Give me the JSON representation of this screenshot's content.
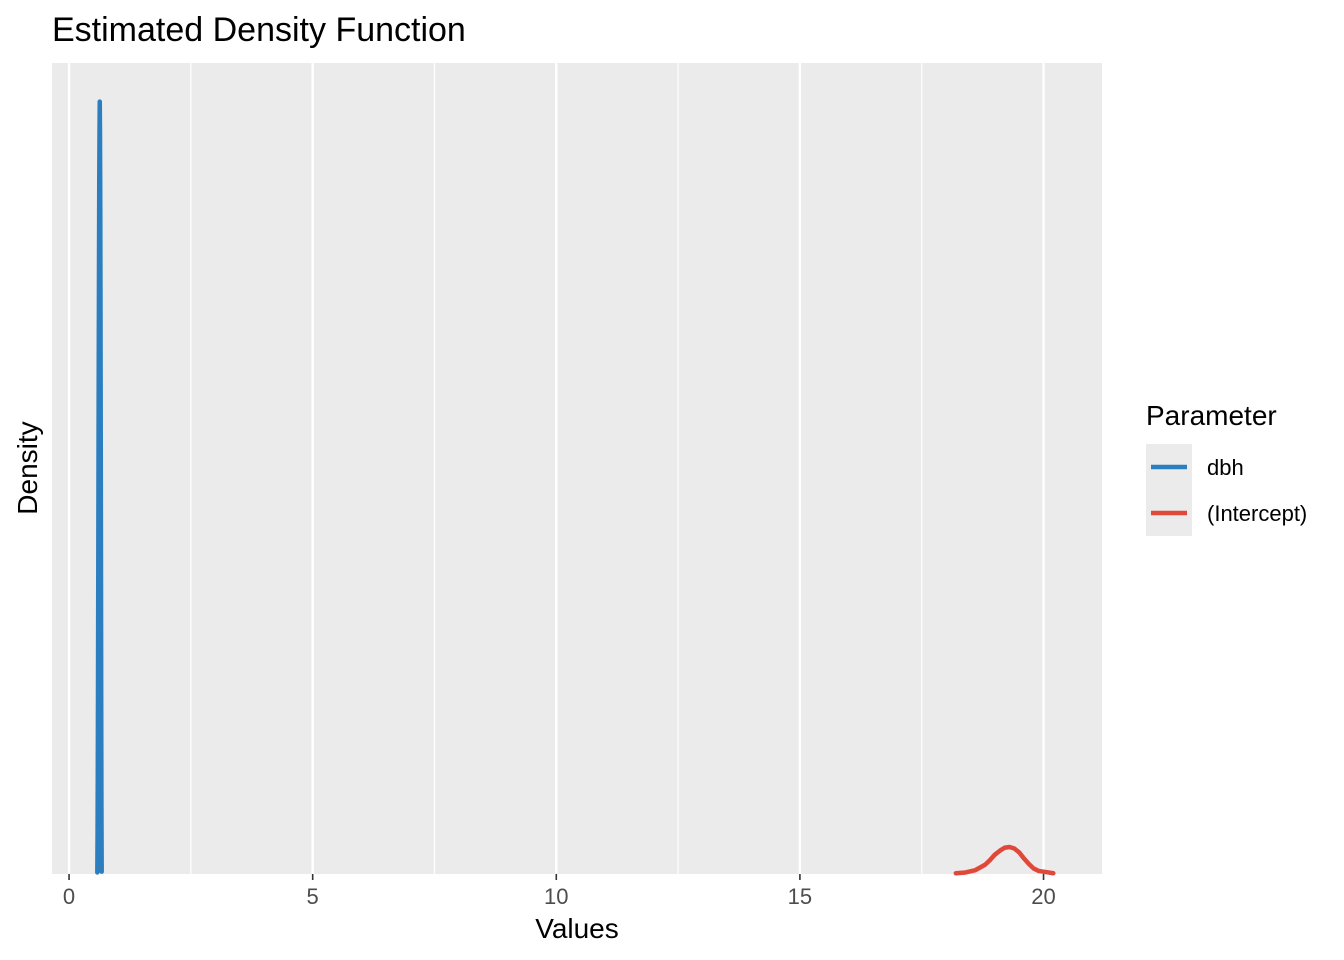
{
  "chart_data": {
    "type": "line",
    "title": "Estimated Density Function",
    "xlabel": "Values",
    "ylabel": "Density",
    "xlim": [
      -0.35,
      21.2
    ],
    "ylim": [
      0,
      1.05
    ],
    "x_ticks": [
      0,
      5,
      10,
      15,
      20
    ],
    "x_tick_labels": [
      "0",
      "5",
      "10",
      "15",
      "20"
    ],
    "y_ticks_shown": false,
    "grid": true,
    "legend": {
      "title": "Parameter",
      "position": "right"
    },
    "colors": {
      "panel_background": "#ebebeb",
      "grid": "#ffffff",
      "dbh": "#2b7fc0",
      "intercept": "#e0483a"
    },
    "series": [
      {
        "name": "dbh",
        "color": "#2b7fc0",
        "x": [
          0.58,
          0.585,
          0.59,
          0.595,
          0.6,
          0.605,
          0.61,
          0.615,
          0.62,
          0.625,
          0.63,
          0.635,
          0.64,
          0.645,
          0.65,
          0.655,
          0.66,
          0.665,
          0.67
        ],
        "y": [
          0.002,
          0.05,
          0.14,
          0.26,
          0.4,
          0.55,
          0.68,
          0.8,
          0.9,
          0.96,
          1.0,
          0.96,
          0.88,
          0.75,
          0.58,
          0.4,
          0.22,
          0.08,
          0.003
        ]
      },
      {
        "name": "(Intercept)",
        "color": "#e0483a",
        "x": [
          18.2,
          18.4,
          18.6,
          18.8,
          18.9,
          19.0,
          19.1,
          19.2,
          19.3,
          19.4,
          19.5,
          19.6,
          19.7,
          19.8,
          19.9,
          20.0,
          20.1,
          20.2
        ],
        "y": [
          0.001,
          0.002,
          0.005,
          0.012,
          0.018,
          0.025,
          0.03,
          0.034,
          0.035,
          0.033,
          0.028,
          0.02,
          0.013,
          0.007,
          0.004,
          0.003,
          0.002,
          0.001
        ]
      }
    ]
  }
}
